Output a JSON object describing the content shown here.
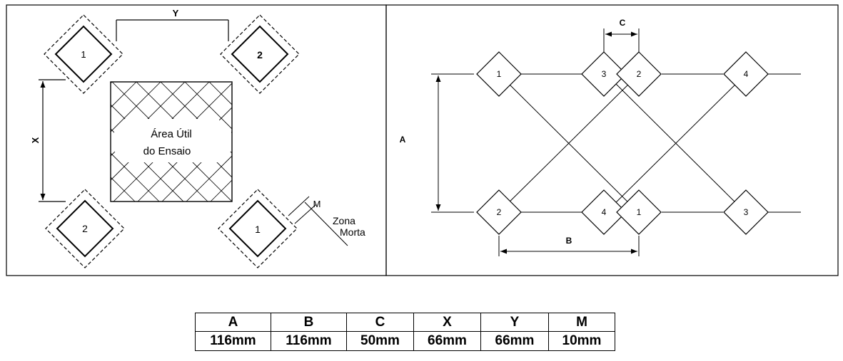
{
  "left_panel": {
    "area_label_line1": "Área Útil",
    "area_label_line2": "do Ensaio",
    "dim_x": "X",
    "dim_y": "Y",
    "dim_m": "M",
    "dead_zone_line1": "Zona",
    "dead_zone_line2": "Morta",
    "sensors": [
      {
        "id": "tl",
        "label": "1"
      },
      {
        "id": "tr",
        "label": "2"
      },
      {
        "id": "bl",
        "label": "2"
      },
      {
        "id": "br",
        "label": "1"
      }
    ]
  },
  "right_panel": {
    "dim_a": "A",
    "dim_b": "B",
    "dim_c": "C",
    "top_row": [
      "1",
      "3",
      "2",
      "4"
    ],
    "bottom_row": [
      "2",
      "4",
      "1",
      "3"
    ]
  },
  "dimension_table": {
    "headers": [
      "A",
      "B",
      "C",
      "X",
      "Y",
      "M"
    ],
    "values": [
      "116mm",
      "116mm",
      "50mm",
      "66mm",
      "66mm",
      "10mm"
    ]
  }
}
